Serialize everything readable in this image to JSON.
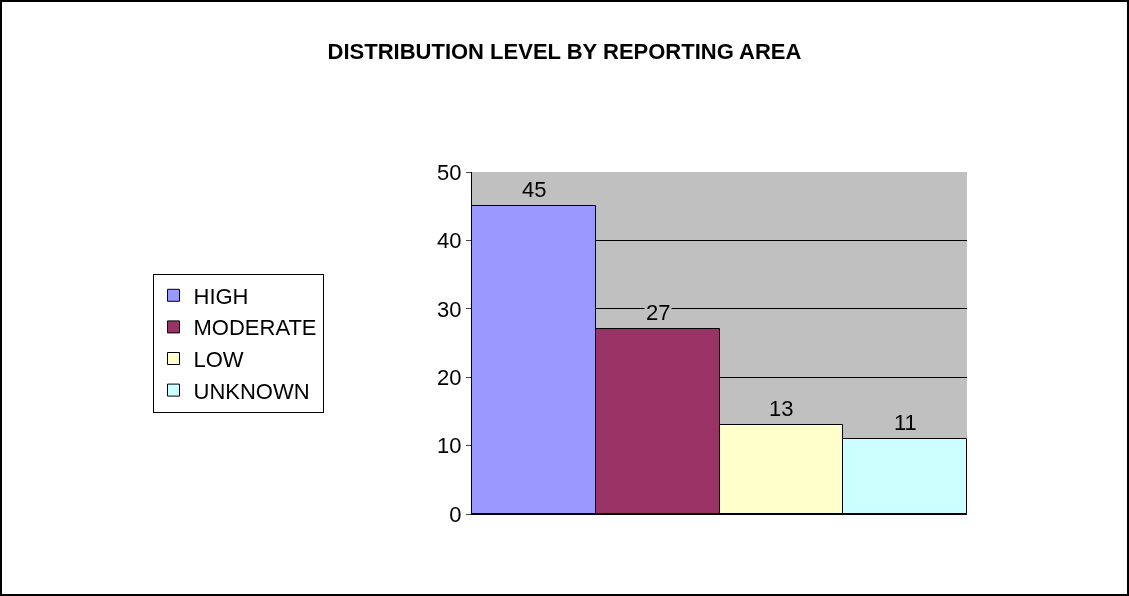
{
  "chart_data": {
    "type": "bar",
    "title": "DISTRIBUTION LEVEL BY REPORTING AREA",
    "categories": [
      null
    ],
    "series": [
      {
        "name": "HIGH",
        "color": "#9999ff",
        "values": [
          45
        ]
      },
      {
        "name": "MODERATE",
        "color": "#993366",
        "values": [
          27
        ]
      },
      {
        "name": "LOW",
        "color": "#ffffcc",
        "values": [
          13
        ]
      },
      {
        "name": "UNKNOWN",
        "color": "#ccffff",
        "values": [
          11
        ]
      }
    ],
    "ylim": [
      0,
      50
    ],
    "yticks": [
      0,
      10,
      20,
      30,
      40,
      50
    ],
    "grid": "y",
    "legend": "left",
    "data_labels": true
  }
}
